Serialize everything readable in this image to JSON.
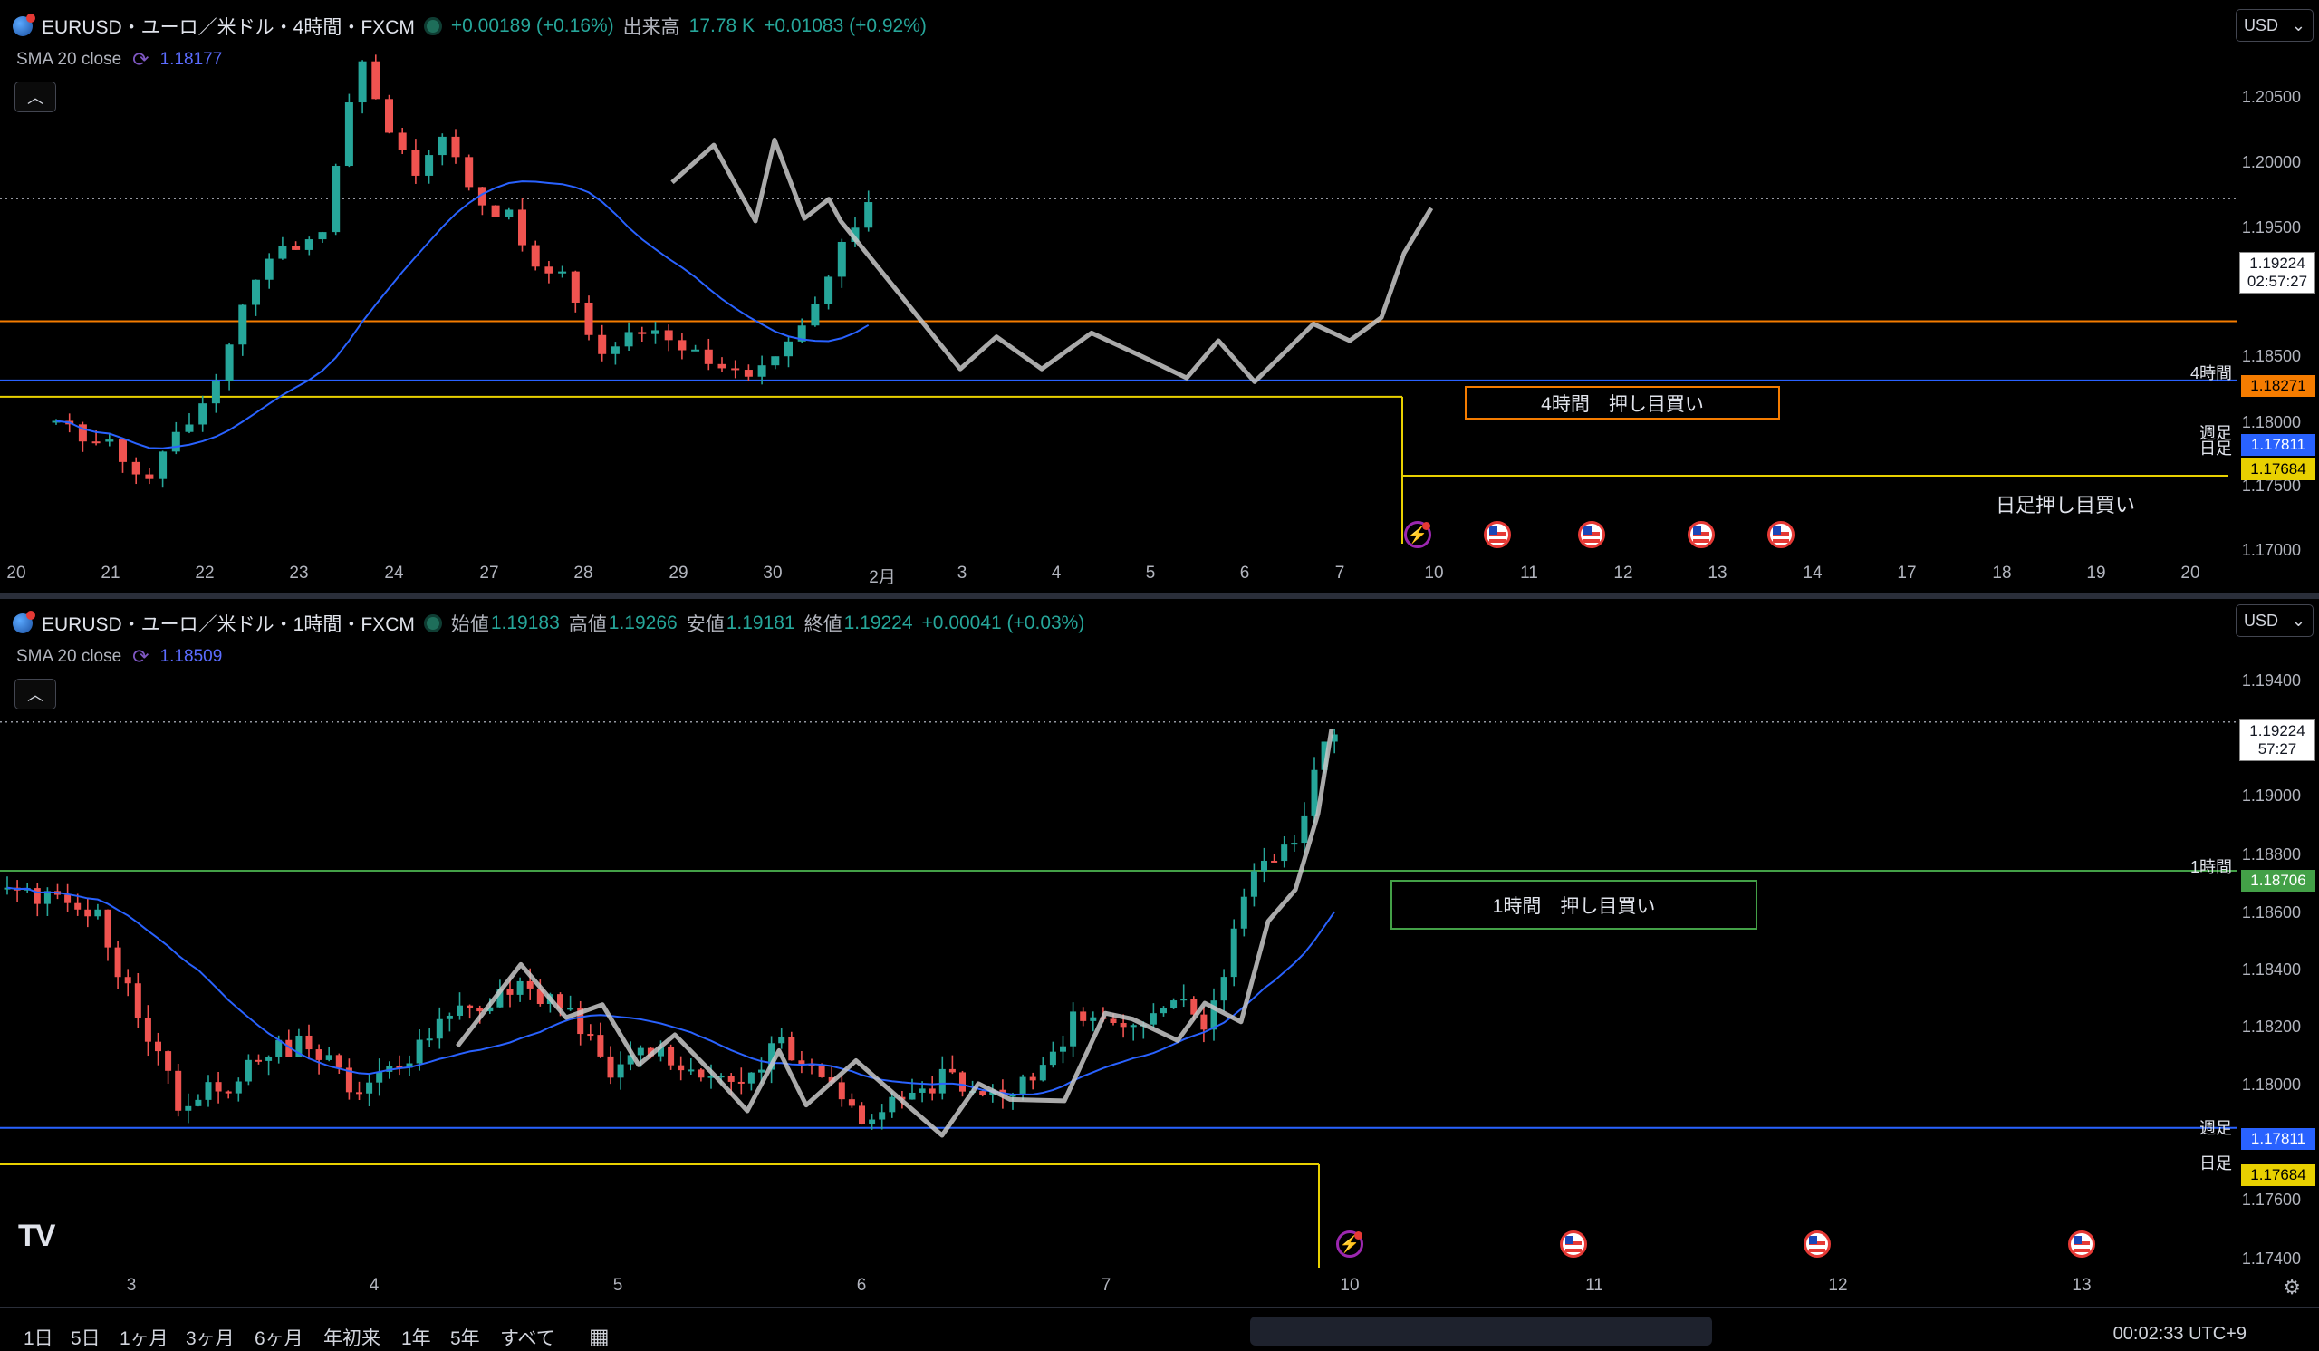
{
  "pane1": {
    "symbol": "EURUSD・ユーロ／米ドル・4時間・FXCM",
    "change": "+0.00189 (+0.16%)",
    "volume_label": "出来高",
    "volume_value": "17.78 K",
    "volume_change": "+0.01083 (+0.92%)",
    "sma_label": "SMA 20 close",
    "sma_value": "1.18177",
    "currency": "USD",
    "price_ticks": [
      "1.20500",
      "1.20000",
      "1.19500",
      "1.18500",
      "1.18000",
      "1.17500",
      "1.17000"
    ],
    "time_ticks": [
      "20",
      "21",
      "22",
      "23",
      "24",
      "27",
      "28",
      "29",
      "30",
      "2月",
      "3",
      "4",
      "5",
      "6",
      "7",
      "10",
      "11",
      "12",
      "13",
      "14",
      "17",
      "18",
      "19",
      "20"
    ],
    "last_price": "1.19224",
    "countdown": "02:57:27",
    "lines": {
      "h4_label": "4時間",
      "h4_price": "1.18271",
      "h4_color": "#f57c00",
      "weekly_label": "週足",
      "weekly_price": "1.17811",
      "weekly_color": "#2962ff",
      "daily_label": "日足",
      "daily_price": "1.17684",
      "daily_color": "#e8d000"
    },
    "box_text": "4時間　押し目買い",
    "daily_text": "日足押し目買い"
  },
  "pane2": {
    "symbol": "EURUSD・ユーロ／米ドル・1時間・FXCM",
    "ohlc": {
      "open_label": "始値",
      "open": "1.19183",
      "high_label": "高値",
      "high": "1.19266",
      "low_label": "安値",
      "low": "1.19181",
      "close_label": "終値",
      "close": "1.19224",
      "change": "+0.00041 (+0.03%)"
    },
    "sma_label": "SMA 20 close",
    "sma_value": "1.18509",
    "currency": "USD",
    "price_ticks": [
      "1.19400",
      "1.19000",
      "1.18800",
      "1.18600",
      "1.18400",
      "1.18200",
      "1.18000",
      "1.17600",
      "1.17400"
    ],
    "time_ticks": [
      "3",
      "4",
      "5",
      "6",
      "7",
      "10",
      "11",
      "12",
      "13"
    ],
    "last_price": "1.19224",
    "countdown": "57:27",
    "lines": {
      "h1_label": "1時間",
      "h1_price": "1.18706",
      "h1_color": "#43a047",
      "weekly_label": "週足",
      "weekly_price": "1.17811",
      "daily_label": "日足",
      "daily_price": "1.17684"
    },
    "box_text": "1時間　押し目買い"
  },
  "bottom_bar": {
    "ranges": [
      "1日",
      "5日",
      "1ヶ月",
      "3ヶ月",
      "6ヶ月",
      "年初来",
      "1年",
      "5年",
      "すべて"
    ],
    "clock": "00:02:33 UTC+9"
  },
  "colors": {
    "up": "#26a69a",
    "down": "#ef5350",
    "sma": "#2962ff",
    "zigzag": "#c8c8c8"
  }
}
